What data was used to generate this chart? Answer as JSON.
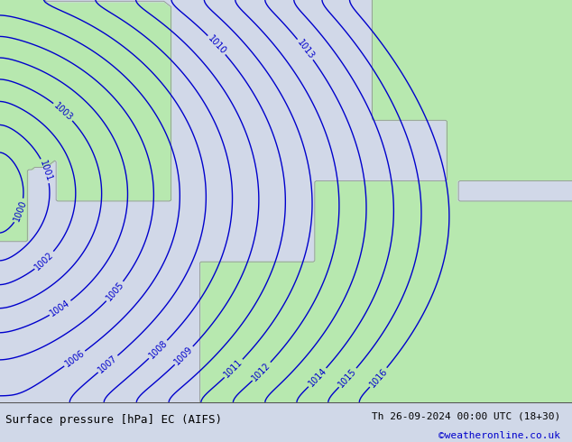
{
  "title_left": "Surface pressure [hPa] EC (AIFS)",
  "title_right": "Th 26-09-2024 00:00 UTC (18+30)",
  "copyright": "©weatheronline.co.uk",
  "bg_color": "#d0d8e8",
  "land_color": "#b8e8b0",
  "contour_color": "#0000cc",
  "contour_linewidth": 1.0,
  "label_color": "#0000cc",
  "label_fontsize": 7,
  "bottom_bar_color": "#c8d8c8",
  "pressure_min": 982,
  "pressure_max": 1016,
  "pressure_step": 1,
  "bottom_text_color": "#000000",
  "copyright_color": "#0000cc"
}
